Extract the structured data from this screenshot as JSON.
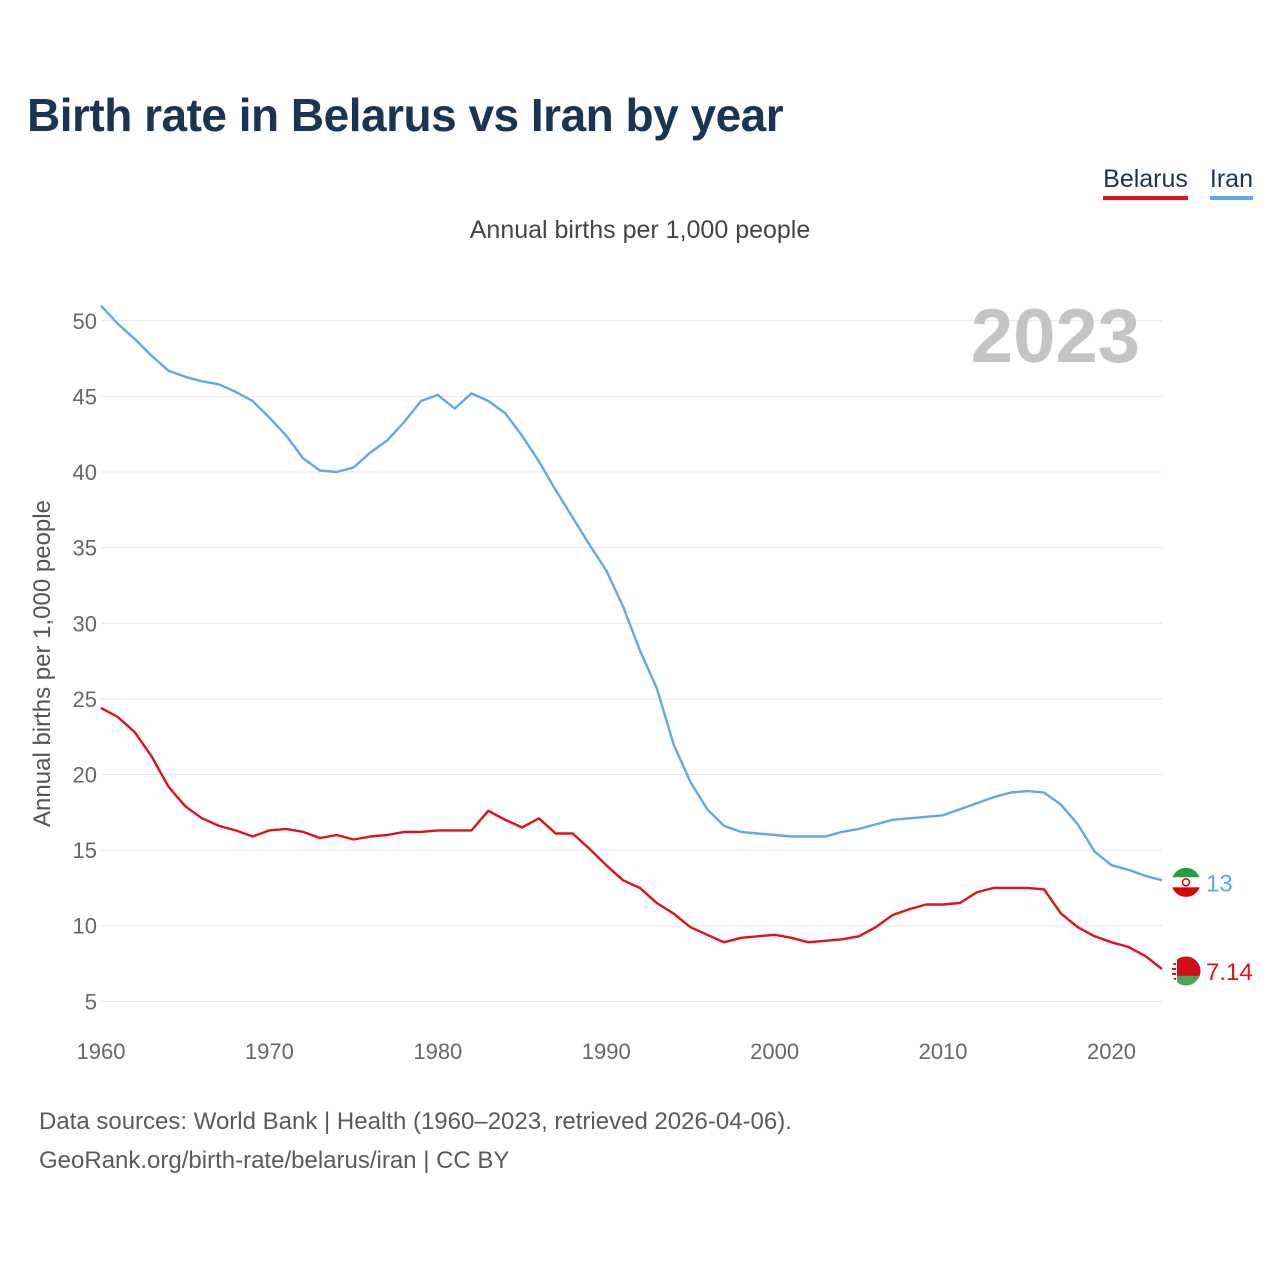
{
  "title": "Birth rate in Belarus vs Iran by year",
  "subtitle": "Annual births per 1,000 people",
  "legend": {
    "belarus": "Belarus",
    "iran": "Iran"
  },
  "footer": {
    "line1": "Data sources: World Bank | Health (1960–2023, retrieved 2026-04-06).",
    "line2": "GeoRank.org/birth-rate/belarus/iran | CC BY"
  },
  "chart_data": {
    "type": "line",
    "title": "Birth rate in Belarus vs Iran by year",
    "ylabel": "Annual births per 1,000 people",
    "xlabel": "",
    "year_label": "2023",
    "xlim": [
      1960,
      2023
    ],
    "ylim": [
      3.5,
      52.5
    ],
    "x_ticks": [
      1960,
      1970,
      1980,
      1990,
      2000,
      2010,
      2020
    ],
    "y_ticks": [
      5,
      10,
      15,
      20,
      25,
      30,
      35,
      40,
      45,
      50
    ],
    "grid": true,
    "legend_position": "top-right",
    "x": [
      1960,
      1961,
      1962,
      1963,
      1964,
      1965,
      1966,
      1967,
      1968,
      1969,
      1970,
      1971,
      1972,
      1973,
      1974,
      1975,
      1976,
      1977,
      1978,
      1979,
      1980,
      1981,
      1982,
      1983,
      1984,
      1985,
      1986,
      1987,
      1988,
      1989,
      1990,
      1991,
      1992,
      1993,
      1994,
      1995,
      1996,
      1997,
      1998,
      1999,
      2000,
      2001,
      2002,
      2003,
      2004,
      2005,
      2006,
      2007,
      2008,
      2009,
      2010,
      2011,
      2012,
      2013,
      2014,
      2015,
      2016,
      2017,
      2018,
      2019,
      2020,
      2021,
      2022,
      2023
    ],
    "series": [
      {
        "name": "Iran",
        "color": "#62a8e4",
        "flag": "iran-flag",
        "end_label": "13",
        "values": [
          51.0,
          49.8,
          48.8,
          47.7,
          46.7,
          46.3,
          46.0,
          45.8,
          45.3,
          44.7,
          43.6,
          42.4,
          40.9,
          40.1,
          40.0,
          40.3,
          41.3,
          42.1,
          43.3,
          44.7,
          45.1,
          44.2,
          45.2,
          44.7,
          43.9,
          42.4,
          40.7,
          38.8,
          37.0,
          35.2,
          33.5,
          31.1,
          28.2,
          25.7,
          22.0,
          19.5,
          17.7,
          16.6,
          16.2,
          16.1,
          16.0,
          15.9,
          15.9,
          15.9,
          16.2,
          16.4,
          16.7,
          17.0,
          17.1,
          17.2,
          17.3,
          17.7,
          18.1,
          18.5,
          18.8,
          18.9,
          18.8,
          18.0,
          16.7,
          14.9,
          14.0,
          13.7,
          13.3,
          13.0
        ]
      },
      {
        "name": "Belarus",
        "color": "#e3101c",
        "flag": "belarus-flag",
        "end_label": "7.14",
        "values": [
          24.4,
          23.8,
          22.8,
          21.2,
          19.2,
          17.9,
          17.1,
          16.6,
          16.3,
          15.9,
          16.3,
          16.4,
          16.2,
          15.8,
          16.0,
          15.7,
          15.9,
          16.0,
          16.2,
          16.2,
          16.3,
          16.3,
          16.3,
          17.6,
          17.0,
          16.5,
          17.1,
          16.1,
          16.1,
          15.1,
          14.0,
          13.0,
          12.5,
          11.5,
          10.8,
          9.9,
          9.4,
          8.9,
          9.2,
          9.3,
          9.4,
          9.2,
          8.9,
          9.0,
          9.1,
          9.3,
          9.9,
          10.7,
          11.1,
          11.4,
          11.4,
          11.5,
          12.2,
          12.5,
          12.5,
          12.5,
          12.4,
          10.8,
          9.9,
          9.3,
          8.9,
          8.6,
          8.0,
          7.14
        ]
      }
    ]
  }
}
